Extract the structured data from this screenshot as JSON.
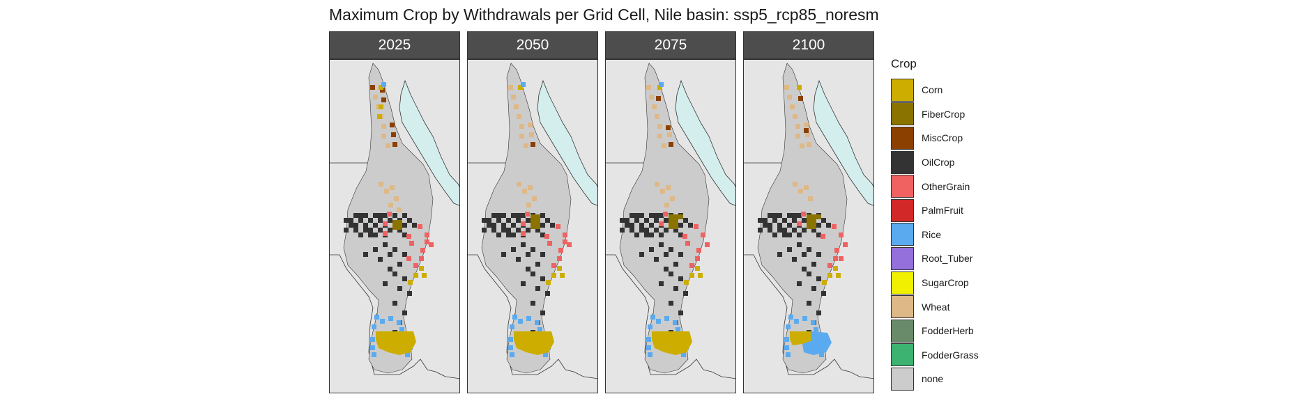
{
  "title": "Maximum Crop by Withdrawals per Grid Cell, Nile basin: ssp5_rcp85_noresm",
  "legend": {
    "title": "Crop",
    "items": [
      {
        "label": "Corn",
        "color": "#ccad00"
      },
      {
        "label": "FiberCrop",
        "color": "#8b7300"
      },
      {
        "label": "MiscCrop",
        "color": "#8b4000"
      },
      {
        "label": "OilCrop",
        "color": "#333333"
      },
      {
        "label": "OtherGrain",
        "color": "#f06262"
      },
      {
        "label": "PalmFruit",
        "color": "#d22828"
      },
      {
        "label": "Rice",
        "color": "#5aaaf0"
      },
      {
        "label": "Root_Tuber",
        "color": "#9370db"
      },
      {
        "label": "SugarCrop",
        "color": "#f0f000"
      },
      {
        "label": "Wheat",
        "color": "#deb887"
      },
      {
        "label": "FodderHerb",
        "color": "#698b69"
      },
      {
        "label": "FodderGrass",
        "color": "#3cb371"
      },
      {
        "label": "none",
        "color": "#cccccc"
      }
    ]
  },
  "panels": [
    {
      "label": "2025"
    },
    {
      "label": "2050"
    },
    {
      "label": "2075"
    },
    {
      "label": "2100"
    }
  ],
  "colors": {
    "background": "#e5e5e5",
    "sea": "#d4eeee",
    "strip": "#4d4d4d"
  }
}
